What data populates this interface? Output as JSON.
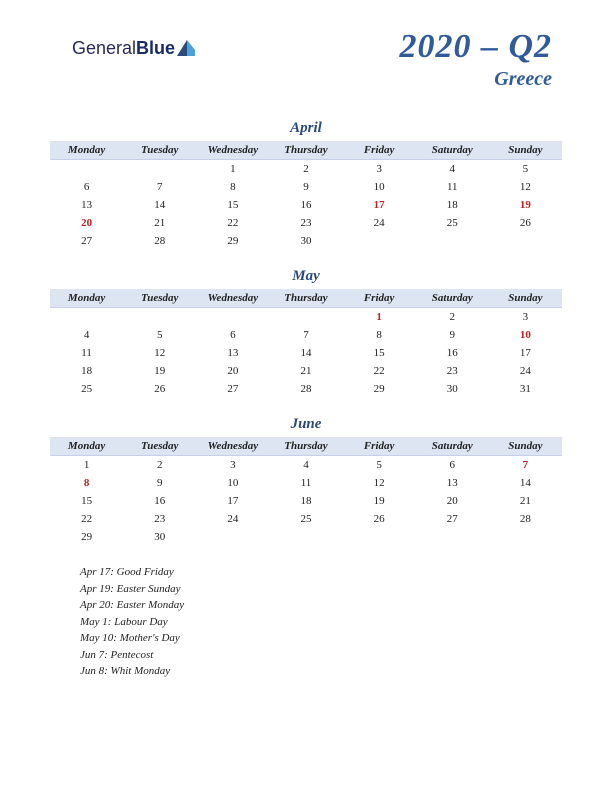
{
  "logo": {
    "part1": "General",
    "part2": "Blue"
  },
  "header": {
    "quarter": "2020 – Q2",
    "country": "Greece"
  },
  "colors": {
    "accent": "#305a9a",
    "header_bg": "#dde5f2",
    "holiday": "#c02020",
    "text": "#222222",
    "background": "#ffffff"
  },
  "day_headers": [
    "Monday",
    "Tuesday",
    "Wednesday",
    "Thursday",
    "Friday",
    "Saturday",
    "Sunday"
  ],
  "months": [
    {
      "name": "April",
      "weeks": [
        [
          "",
          "",
          "1",
          "2",
          "3",
          "4",
          "5"
        ],
        [
          "6",
          "7",
          "8",
          "9",
          "10",
          "11",
          "12"
        ],
        [
          "13",
          "14",
          "15",
          "16",
          "17",
          "18",
          "19"
        ],
        [
          "20",
          "21",
          "22",
          "23",
          "24",
          "25",
          "26"
        ],
        [
          "27",
          "28",
          "29",
          "30",
          "",
          "",
          ""
        ]
      ],
      "holidays_cells": [
        [
          2,
          4
        ],
        [
          2,
          6
        ],
        [
          3,
          0
        ]
      ]
    },
    {
      "name": "May",
      "weeks": [
        [
          "",
          "",
          "",
          "",
          "1",
          "2",
          "3"
        ],
        [
          "4",
          "5",
          "6",
          "7",
          "8",
          "9",
          "10"
        ],
        [
          "11",
          "12",
          "13",
          "14",
          "15",
          "16",
          "17"
        ],
        [
          "18",
          "19",
          "20",
          "21",
          "22",
          "23",
          "24"
        ],
        [
          "25",
          "26",
          "27",
          "28",
          "29",
          "30",
          "31"
        ]
      ],
      "holidays_cells": [
        [
          0,
          4
        ],
        [
          1,
          6
        ]
      ]
    },
    {
      "name": "June",
      "weeks": [
        [
          "1",
          "2",
          "3",
          "4",
          "5",
          "6",
          "7"
        ],
        [
          "8",
          "9",
          "10",
          "11",
          "12",
          "13",
          "14"
        ],
        [
          "15",
          "16",
          "17",
          "18",
          "19",
          "20",
          "21"
        ],
        [
          "22",
          "23",
          "24",
          "25",
          "26",
          "27",
          "28"
        ],
        [
          "29",
          "30",
          "",
          "",
          "",
          "",
          ""
        ]
      ],
      "holidays_cells": [
        [
          0,
          6
        ],
        [
          1,
          0
        ]
      ]
    }
  ],
  "holiday_list": [
    "Apr 17: Good Friday",
    "Apr 19: Easter Sunday",
    "Apr 20: Easter Monday",
    "May 1: Labour Day",
    "May 10: Mother's Day",
    "Jun 7: Pentecost",
    "Jun 8: Whit Monday"
  ]
}
